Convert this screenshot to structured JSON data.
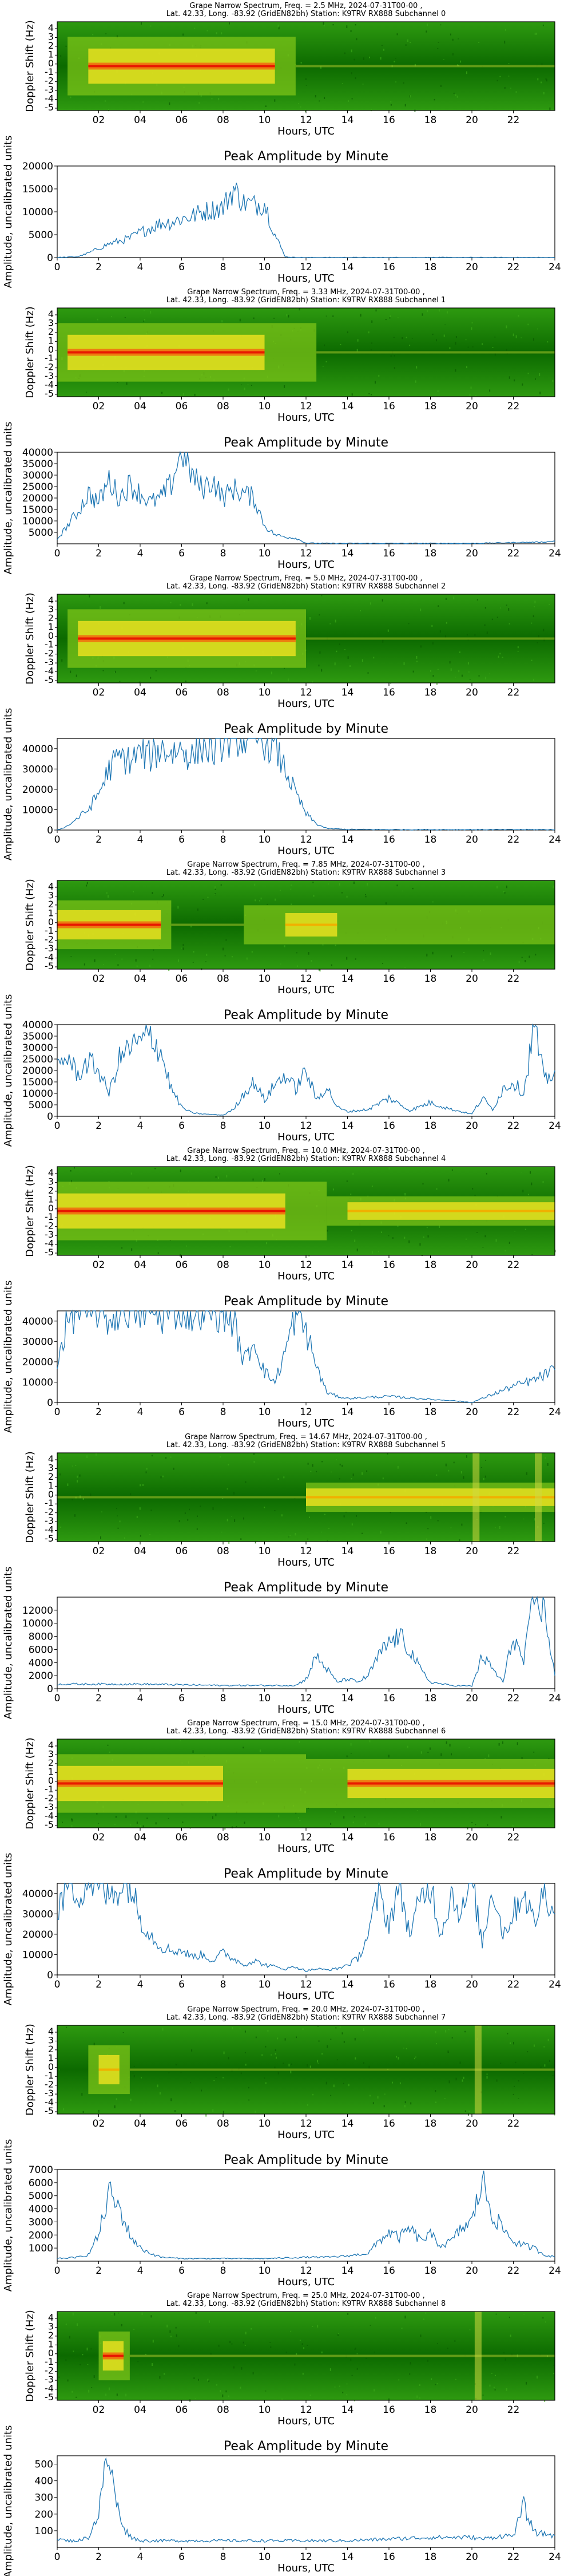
{
  "page": {
    "amp_title": "Peak Amplitude by Minute",
    "x_label": "Hours, UTC",
    "spec_y_label": "Doppler Shift (Hz)",
    "amp_y_label": "Amplitude, uncalibrated units",
    "spec_x_ticks": [
      "02",
      "04",
      "06",
      "08",
      "10",
      "12",
      "14",
      "16",
      "18",
      "20",
      "22"
    ],
    "amp_x_ticks": [
      "0",
      "2",
      "4",
      "6",
      "8",
      "10",
      "12",
      "14",
      "16",
      "18",
      "20",
      "22",
      "24"
    ],
    "spec_y_ticks": [
      "4",
      "3",
      "2",
      "1",
      "0",
      "-1",
      "-2",
      "-3",
      "-4",
      "-5"
    ]
  },
  "colors": {
    "line": "#1f77b4",
    "spec_bg": "#1a7a00",
    "spec_yellow": "#f0e020",
    "spec_red": "#f02000"
  },
  "panels": [
    {
      "spec_title": [
        "Grape Narrow Spectrum, Freq. = 2.5 MHz, 2024-07-31T00-00 ,",
        "Lat.  42.33, Long. -83.92 (GridEN82bh) Station: K9TRV RX888 Subchannel 0"
      ]
    },
    {
      "spec_title": [
        "Grape Narrow Spectrum, Freq. = 3.33 MHz, 2024-07-31T00-00 ,",
        "Lat.  42.33, Long. -83.92 (GridEN82bh) Station: K9TRV RX888 Subchannel 1"
      ]
    },
    {
      "spec_title": [
        "Grape Narrow Spectrum, Freq. = 5.0 MHz, 2024-07-31T00-00 ,",
        "Lat.  42.33, Long. -83.92 (GridEN82bh) Station: K9TRV RX888 Subchannel 2"
      ]
    },
    {
      "spec_title": [
        "Grape Narrow Spectrum, Freq. = 7.85 MHz, 2024-07-31T00-00 ,",
        "Lat.  42.33, Long. -83.92 (GridEN82bh) Station: K9TRV RX888 Subchannel 3"
      ]
    },
    {
      "spec_title": [
        "Grape Narrow Spectrum, Freq. = 10.0 MHz, 2024-07-31T00-00 ,",
        "Lat.  42.33, Long. -83.92 (GridEN82bh) Station: K9TRV RX888 Subchannel 4"
      ]
    },
    {
      "spec_title": [
        "Grape Narrow Spectrum, Freq. = 14.67 MHz, 2024-07-31T00-00 ,",
        "Lat.  42.33, Long. -83.92 (GridEN82bh) Station: K9TRV RX888 Subchannel 5"
      ]
    },
    {
      "spec_title": [
        "Grape Narrow Spectrum, Freq. = 15.0 MHz, 2024-07-31T00-00 ,",
        "Lat.  42.33, Long. -83.92 (GridEN82bh) Station: K9TRV RX888 Subchannel 6"
      ]
    },
    {
      "spec_title": [
        "Grape Narrow Spectrum, Freq. = 20.0 MHz, 2024-07-31T00-00 ,",
        "Lat.  42.33, Long. -83.92 (GridEN82bh) Station: K9TRV RX888 Subchannel 7"
      ]
    },
    {
      "spec_title": [
        "Grape Narrow Spectrum, Freq. = 25.0 MHz, 2024-07-31T00-00 ,",
        "Lat.  42.33, Long. -83.92 (GridEN82bh) Station: K9TRV RX888 Subchannel 8"
      ]
    }
  ],
  "chart_data": [
    {
      "type": "heatmap",
      "subchannel": 0,
      "freq_mhz": 2.5,
      "xlim": [
        0,
        24
      ],
      "ylim": [
        -5,
        5
      ],
      "bands": [
        {
          "start": 0.5,
          "end": 11.5,
          "peak": 6,
          "core_start": 1.5,
          "core_end": 10.5,
          "red": true
        },
        {
          "start": 11.5,
          "end": 24,
          "peak": 0,
          "faint": true
        }
      ]
    },
    {
      "type": "line",
      "subchannel": 0,
      "title": "Peak Amplitude by Minute",
      "xlabel": "Hours, UTC",
      "ylabel": "Amplitude, uncalibrated units",
      "xlim": [
        0,
        24
      ],
      "ylim": [
        0,
        20000
      ],
      "yticks": [
        0,
        5000,
        10000,
        15000,
        20000
      ],
      "x": [
        0,
        1,
        1.5,
        2,
        2.5,
        3,
        3.5,
        4,
        4.5,
        5,
        5.5,
        6,
        6.5,
        7,
        7.5,
        8,
        8.5,
        9,
        9.5,
        10,
        10.5,
        11,
        11.5,
        12,
        14,
        16,
        18,
        20,
        22,
        24
      ],
      "y": [
        0,
        200,
        1000,
        2000,
        3000,
        3600,
        4200,
        5500,
        6500,
        7500,
        7800,
        8500,
        9000,
        10000,
        10500,
        11000,
        15000,
        12000,
        11500,
        12000,
        5000,
        200,
        0,
        0,
        0,
        0,
        0,
        0,
        0,
        0
      ]
    },
    {
      "type": "heatmap",
      "subchannel": 1,
      "freq_mhz": 3.33,
      "xlim": [
        0,
        24
      ],
      "ylim": [
        -5,
        5
      ],
      "bands": [
        {
          "start": 0,
          "end": 12.5,
          "peak": 6,
          "core_start": 0.5,
          "core_end": 10,
          "red": true
        },
        {
          "start": 12.5,
          "end": 24,
          "peak": 0,
          "faint": true
        }
      ]
    },
    {
      "type": "line",
      "subchannel": 1,
      "title": "Peak Amplitude by Minute",
      "xlabel": "Hours, UTC",
      "ylabel": "Amplitude, uncalibrated units",
      "xlim": [
        0,
        24
      ],
      "ylim": [
        0,
        40000
      ],
      "yticks": [
        5000,
        10000,
        15000,
        20000,
        25000,
        30000,
        35000,
        40000
      ],
      "x": [
        0,
        0.5,
        1,
        1.5,
        2,
        2.5,
        3,
        3.5,
        4,
        4.5,
        5,
        5.5,
        6,
        6.5,
        7,
        7.5,
        8,
        8.5,
        9,
        9.5,
        10,
        10.5,
        11,
        11.5,
        12,
        13,
        16,
        20,
        23.5,
        24
      ],
      "y": [
        2000,
        8000,
        14000,
        22000,
        18000,
        28000,
        20000,
        26000,
        22000,
        18000,
        20000,
        26000,
        42000,
        30000,
        24000,
        28000,
        20000,
        24000,
        22000,
        20000,
        8000,
        4000,
        3000,
        2500,
        300,
        200,
        200,
        200,
        800,
        1200
      ]
    },
    {
      "type": "heatmap",
      "subchannel": 2,
      "freq_mhz": 5.0,
      "xlim": [
        0,
        24
      ],
      "ylim": [
        -5,
        5
      ],
      "bands": [
        {
          "start": 0.5,
          "end": 12,
          "peak": 6,
          "core_start": 1,
          "core_end": 11.5,
          "red": true
        },
        {
          "start": 12,
          "end": 24,
          "peak": 0,
          "faint": true
        }
      ]
    },
    {
      "type": "line",
      "subchannel": 2,
      "title": "Peak Amplitude by Minute",
      "xlabel": "Hours, UTC",
      "ylabel": "Amplitude, uncalibrated units",
      "xlim": [
        0,
        24
      ],
      "ylim": [
        0,
        45000
      ],
      "yticks": [
        0,
        10000,
        20000,
        30000,
        40000
      ],
      "x": [
        0,
        0.5,
        1,
        1.5,
        2,
        2.5,
        3,
        3.5,
        4,
        4.5,
        5,
        5.5,
        6,
        6.5,
        7,
        7.5,
        8,
        8.5,
        9,
        9.5,
        10,
        10.5,
        11,
        11.5,
        12,
        12.5,
        13,
        14,
        16,
        18,
        20,
        22,
        24
      ],
      "y": [
        0,
        2000,
        6000,
        10000,
        18000,
        30000,
        36000,
        34000,
        38000,
        36000,
        40000,
        38000,
        40000,
        36000,
        42000,
        38000,
        44000,
        46000,
        45000,
        46000,
        44000,
        40000,
        30000,
        18000,
        8000,
        3000,
        800,
        300,
        200,
        200,
        200,
        200,
        200
      ]
    },
    {
      "type": "heatmap",
      "subchannel": 3,
      "freq_mhz": 7.85,
      "xlim": [
        0,
        24
      ],
      "ylim": [
        -5,
        5
      ],
      "bands": [
        {
          "start": 0,
          "end": 5.5,
          "peak": 5,
          "core_start": 0,
          "core_end": 5,
          "red": true
        },
        {
          "start": 5.5,
          "end": 9,
          "peak": 0,
          "faint": true
        },
        {
          "start": 9,
          "end": 24,
          "peak": 4,
          "core_start": 11,
          "core_end": 13.5,
          "red": false
        }
      ]
    },
    {
      "type": "line",
      "subchannel": 3,
      "title": "Peak Amplitude by Minute",
      "xlabel": "Hours, UTC",
      "ylabel": "Amplitude, uncalibrated units",
      "xlim": [
        0,
        24
      ],
      "ylim": [
        0,
        40000
      ],
      "yticks": [
        0,
        5000,
        10000,
        15000,
        20000,
        25000,
        30000,
        35000,
        40000
      ],
      "x": [
        0,
        0.5,
        1,
        1.5,
        2,
        2.5,
        3,
        3.5,
        4,
        4.5,
        5,
        5.5,
        6,
        6.5,
        7,
        8,
        8.5,
        9,
        9.5,
        10,
        10.5,
        11,
        11.5,
        12,
        12.5,
        13,
        13.5,
        14,
        15,
        16,
        17,
        18,
        19,
        19.5,
        20,
        20.5,
        21,
        21.5,
        22,
        22.5,
        23,
        23.5,
        24
      ],
      "y": [
        22000,
        26000,
        18000,
        24000,
        20000,
        10000,
        25000,
        30000,
        32000,
        36000,
        28000,
        12000,
        4000,
        1500,
        1000,
        500,
        3000,
        10000,
        15000,
        7000,
        14000,
        18000,
        12000,
        20000,
        7000,
        13000,
        4000,
        2000,
        3000,
        8000,
        2500,
        6000,
        3000,
        2000,
        1000,
        8000,
        3000,
        12000,
        15000,
        10000,
        40000,
        15000,
        20000
      ]
    },
    {
      "type": "heatmap",
      "subchannel": 4,
      "freq_mhz": 10.0,
      "xlim": [
        0,
        24
      ],
      "ylim": [
        -5,
        5
      ],
      "bands": [
        {
          "start": 0,
          "end": 13,
          "peak": 6,
          "core_start": 0,
          "core_end": 11,
          "red": true
        },
        {
          "start": 13,
          "end": 24,
          "peak": 3,
          "core_start": 14,
          "core_end": 24,
          "red": false
        }
      ]
    },
    {
      "type": "line",
      "subchannel": 4,
      "title": "Peak Amplitude by Minute",
      "xlabel": "Hours, UTC",
      "ylabel": "Amplitude, uncalibrated units",
      "xlim": [
        0,
        24
      ],
      "ylim": [
        0,
        45000
      ],
      "yticks": [
        0,
        10000,
        20000,
        30000,
        40000
      ],
      "x": [
        0,
        0.5,
        1,
        1.5,
        2,
        2.5,
        3,
        3.5,
        4,
        4.5,
        5,
        5.5,
        6,
        6.5,
        7,
        7.5,
        8,
        8.5,
        9,
        9.5,
        10,
        10.5,
        11,
        11.5,
        12,
        12.5,
        13,
        13.5,
        14,
        16,
        18,
        19,
        20,
        20.5,
        21,
        22,
        23,
        24
      ],
      "y": [
        20000,
        40000,
        46000,
        44000,
        46000,
        40000,
        45000,
        46000,
        44000,
        46000,
        42000,
        45000,
        46000,
        43000,
        46000,
        45000,
        44000,
        40000,
        20000,
        30000,
        15000,
        10000,
        25000,
        44000,
        35000,
        18000,
        5000,
        3000,
        2000,
        3000,
        1500,
        1000,
        0,
        2000,
        4000,
        8000,
        11000,
        16000
      ]
    },
    {
      "type": "heatmap",
      "subchannel": 5,
      "freq_mhz": 14.67,
      "xlim": [
        0,
        24
      ],
      "ylim": [
        -5,
        5
      ],
      "bands": [
        {
          "start": 0,
          "end": 12,
          "peak": 1,
          "faint": true
        },
        {
          "start": 12,
          "end": 24,
          "peak": 3,
          "core_start": 12,
          "core_end": 24,
          "red": false
        }
      ],
      "vertical_stripes": [
        20.2,
        23.2
      ]
    },
    {
      "type": "line",
      "subchannel": 5,
      "title": "Peak Amplitude by Minute",
      "xlabel": "Hours, UTC",
      "ylabel": "Amplitude, uncalibrated units",
      "xlim": [
        0,
        24
      ],
      "ylim": [
        0,
        14000
      ],
      "yticks": [
        0,
        2000,
        4000,
        6000,
        8000,
        10000,
        12000
      ],
      "x": [
        0,
        2,
        4,
        6,
        8,
        10,
        11.5,
        12,
        12.5,
        13,
        13.5,
        14,
        14.5,
        15,
        15.5,
        16,
        16.5,
        17,
        17.5,
        18,
        19,
        20,
        20.5,
        21,
        21.5,
        22,
        22.5,
        23,
        23.5,
        24
      ],
      "y": [
        700,
        700,
        700,
        600,
        500,
        500,
        500,
        1500,
        5000,
        3000,
        1000,
        1500,
        1000,
        2000,
        5000,
        7000,
        8000,
        6000,
        3000,
        1000,
        500,
        400,
        5000,
        3000,
        1000,
        8000,
        4000,
        14000,
        12000,
        2000
      ]
    },
    {
      "type": "heatmap",
      "subchannel": 6,
      "freq_mhz": 15.0,
      "xlim": [
        0,
        24
      ],
      "ylim": [
        -5,
        5
      ],
      "bands": [
        {
          "start": 0,
          "end": 12,
          "peak": 6,
          "core_start": 0,
          "core_end": 8,
          "red": true
        },
        {
          "start": 12,
          "end": 24,
          "peak": 5,
          "core_start": 14,
          "core_end": 24,
          "red": true
        }
      ]
    },
    {
      "type": "line",
      "subchannel": 6,
      "title": "Peak Amplitude by Minute",
      "xlabel": "Hours, UTC",
      "ylabel": "Amplitude, uncalibrated units",
      "xlim": [
        0,
        24
      ],
      "ylim": [
        0,
        45000
      ],
      "yticks": [
        0,
        10000,
        20000,
        30000,
        40000
      ],
      "x": [
        0,
        0.5,
        1,
        1.5,
        2,
        2.5,
        3,
        3.5,
        4,
        4.5,
        5,
        5.5,
        6,
        6.5,
        7,
        7.5,
        8,
        8.5,
        9,
        9.5,
        10,
        10.5,
        11,
        11.5,
        12,
        12.5,
        13,
        13.5,
        14,
        14.5,
        15,
        15.5,
        16,
        16.5,
        17,
        17.5,
        18,
        18.5,
        19,
        19.5,
        20,
        20.5,
        21,
        21.5,
        22,
        22.5,
        23,
        23.5,
        24
      ],
      "y": [
        30000,
        46000,
        40000,
        46000,
        45000,
        38000,
        44000,
        46000,
        28000,
        20000,
        14000,
        12000,
        12000,
        9000,
        10000,
        7000,
        11000,
        8000,
        5000,
        7000,
        5000,
        4000,
        3000,
        4000,
        2000,
        3000,
        2500,
        3000,
        5000,
        8000,
        20000,
        40000,
        25000,
        45000,
        20000,
        36000,
        45000,
        20000,
        40000,
        30000,
        46000,
        15000,
        44000,
        20000,
        30000,
        42000,
        25000,
        42000,
        30000
      ]
    },
    {
      "type": "heatmap",
      "subchannel": 7,
      "freq_mhz": 20.0,
      "xlim": [
        0,
        24
      ],
      "ylim": [
        -5,
        5
      ],
      "bands": [
        {
          "start": 1.5,
          "end": 3.5,
          "peak": 5,
          "core_start": 2,
          "core_end": 3,
          "red": false
        },
        {
          "start": 3.5,
          "end": 24,
          "peak": 2,
          "faint": true
        }
      ],
      "vertical_stripes": [
        20.3
      ]
    },
    {
      "type": "line",
      "subchannel": 7,
      "title": "Peak Amplitude by Minute",
      "xlabel": "Hours, UTC",
      "ylabel": "Amplitude, uncalibrated units",
      "xlim": [
        0,
        24
      ],
      "ylim": [
        0,
        7000
      ],
      "yticks": [
        1000,
        2000,
        3000,
        4000,
        5000,
        6000,
        7000
      ],
      "x": [
        0,
        1,
        1.5,
        2,
        2.5,
        3,
        3.5,
        4,
        4.5,
        5,
        6,
        8,
        10,
        12,
        13,
        14,
        15,
        15.5,
        16,
        16.5,
        17,
        17.5,
        18,
        18.5,
        19,
        19.5,
        20,
        20.5,
        21,
        21.5,
        22,
        22.5,
        23,
        23.5,
        24
      ],
      "y": [
        200,
        300,
        500,
        2000,
        5200,
        4000,
        2000,
        1000,
        600,
        300,
        200,
        200,
        200,
        300,
        300,
        400,
        600,
        1500,
        2200,
        1800,
        2500,
        1600,
        2000,
        1200,
        1500,
        2500,
        3000,
        6200,
        3500,
        2500,
        1500,
        1200,
        1000,
        500,
        300
      ]
    },
    {
      "type": "heatmap",
      "subchannel": 8,
      "freq_mhz": 25.0,
      "xlim": [
        0,
        24
      ],
      "ylim": [
        -5,
        5
      ],
      "bands": [
        {
          "start": 2,
          "end": 3.5,
          "peak": 5,
          "core_start": 2.2,
          "core_end": 3.2,
          "red": true
        },
        {
          "start": 3.5,
          "end": 24,
          "peak": 1,
          "faint": true
        }
      ],
      "vertical_stripes": [
        20.3
      ]
    },
    {
      "type": "line",
      "subchannel": 8,
      "title": "Peak Amplitude by Minute",
      "xlabel": "Hours, UTC",
      "ylabel": "Amplitude, uncalibrated units",
      "xlim": [
        0,
        24
      ],
      "ylim": [
        0,
        550
      ],
      "yticks": [
        100,
        200,
        300,
        400,
        500
      ],
      "x": [
        0,
        0.5,
        1,
        1.5,
        2,
        2.2,
        2.5,
        2.8,
        3,
        3.3,
        3.6,
        4,
        5,
        6,
        8,
        10,
        12,
        14,
        16,
        18,
        20,
        20.5,
        21,
        21.5,
        22,
        22.5,
        23,
        24
      ],
      "y": [
        50,
        40,
        40,
        60,
        200,
        400,
        540,
        300,
        200,
        100,
        60,
        40,
        40,
        40,
        40,
        40,
        40,
        40,
        50,
        60,
        60,
        50,
        60,
        70,
        70,
        250,
        90,
        70
      ]
    }
  ]
}
